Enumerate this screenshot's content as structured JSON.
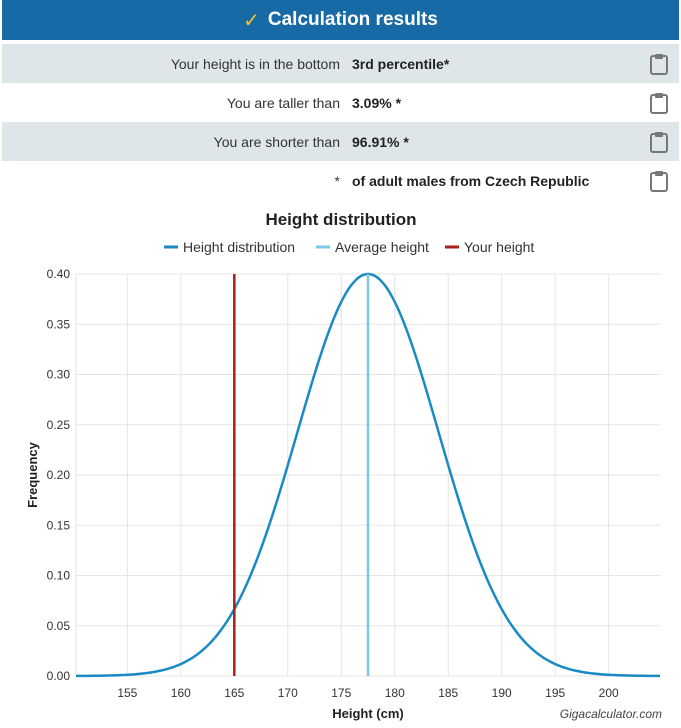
{
  "header": {
    "title": "Calculation results",
    "icon": "check-icon"
  },
  "results": [
    {
      "label": "Your height is in the bottom",
      "value": "3rd percentile*"
    },
    {
      "label": "You are taller than",
      "value": "3.09% *"
    },
    {
      "label": "You are shorter than",
      "value": "96.91% *"
    },
    {
      "label": "*",
      "value": "of adult males from Czech Republic"
    }
  ],
  "colors": {
    "header_bg": "#176aa5",
    "curve": "#1a8ac4",
    "average": "#7ec8e3",
    "yours": "#a8201a"
  },
  "watermark": "Gigacalculator.com",
  "chart_data": {
    "type": "line",
    "title": "Height distribution",
    "xlabel": "Height (cm)",
    "ylabel": "Frequency",
    "xlim": [
      150.2,
      204.8
    ],
    "ylim": [
      0,
      0.4
    ],
    "xticks": [
      155,
      160,
      165,
      170,
      175,
      180,
      185,
      190,
      195,
      200
    ],
    "yticks": [
      "0.00",
      "0.05",
      "0.10",
      "0.15",
      "0.20",
      "0.25",
      "0.30",
      "0.35",
      "0.40"
    ],
    "legend": [
      "Height distribution",
      "Average height",
      "Your height"
    ],
    "legend_position": "top",
    "series": [
      {
        "name": "Height distribution",
        "mean": 177.5,
        "sd": 6.6,
        "peak": 0.4
      }
    ],
    "average_height": 177.5,
    "your_height": 165
  }
}
